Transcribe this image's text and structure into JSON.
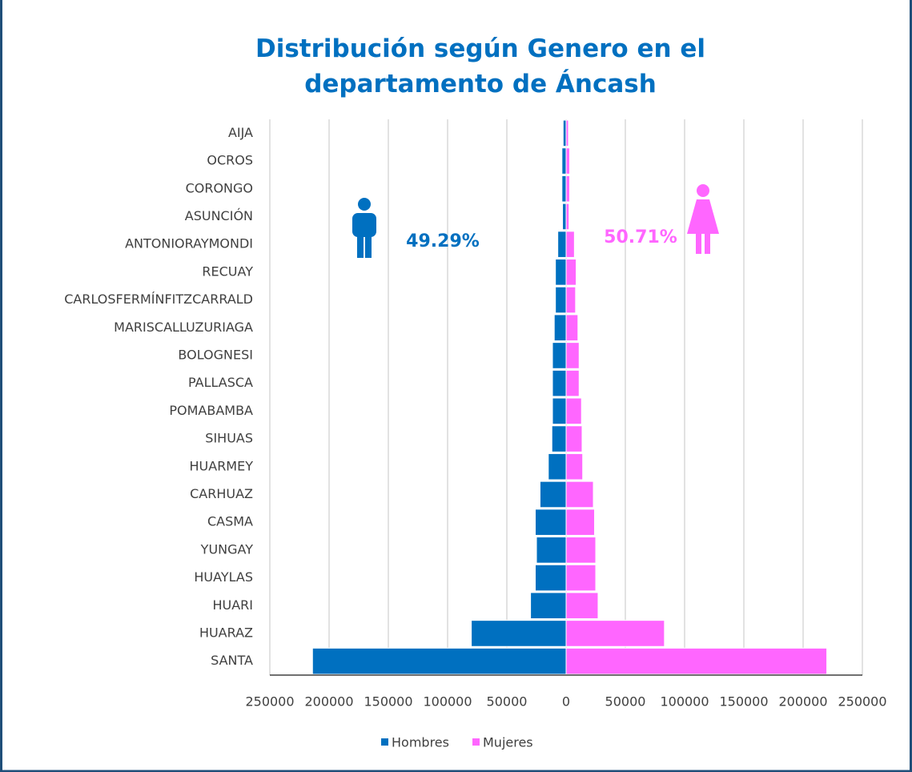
{
  "chart_data": {
    "type": "pyramid",
    "title": "Distribución según Genero en el departamento de Áncash",
    "categories": [
      "AIJA",
      "OCROS",
      "CORONGO",
      "ASUNCIÓN",
      "ANTONIORAYMONDI",
      "RECUAY",
      "CARLOSFERMÍNFITZCARRALD",
      "MARISCALLUZURIAGA",
      "BOLOGNESI",
      "PALLASCA",
      "POMABAMBA",
      "SIHUAS",
      "HUARMEY",
      "CARHUAZ",
      "CASMA",
      "YUNGAY",
      "HUAYLAS",
      "HUARI",
      "HUARAZ",
      "SANTA"
    ],
    "series": [
      {
        "name": "Hombres",
        "color": "#0070c0",
        "values": [
          -2500,
          -3500,
          -3500,
          -3000,
          -7000,
          -9000,
          -9000,
          -10000,
          -11500,
          -11500,
          -11500,
          -12000,
          -15000,
          -22000,
          -26000,
          -25000,
          -26000,
          -30000,
          -80000,
          -214000
        ]
      },
      {
        "name": "Mujeres",
        "color": "#ff66ff",
        "values": [
          2000,
          3000,
          3000,
          2500,
          7000,
          8500,
          8000,
          10000,
          11000,
          11000,
          13000,
          13500,
          14000,
          23000,
          24000,
          25000,
          25000,
          27000,
          83000,
          220000
        ]
      }
    ],
    "annotations": [
      "49.29%",
      "50.71%"
    ],
    "xlim": [
      -250000,
      250000
    ],
    "xticks": [
      {
        "value": -250000,
        "label": "250000"
      },
      {
        "value": -200000,
        "label": "200000"
      },
      {
        "value": -150000,
        "label": "150000"
      },
      {
        "value": -100000,
        "label": "100000"
      },
      {
        "value": -50000,
        "label": "50000"
      },
      0,
      50000,
      100000,
      150000,
      200000,
      250000
    ],
    "grid": true,
    "legend": "bottom"
  }
}
